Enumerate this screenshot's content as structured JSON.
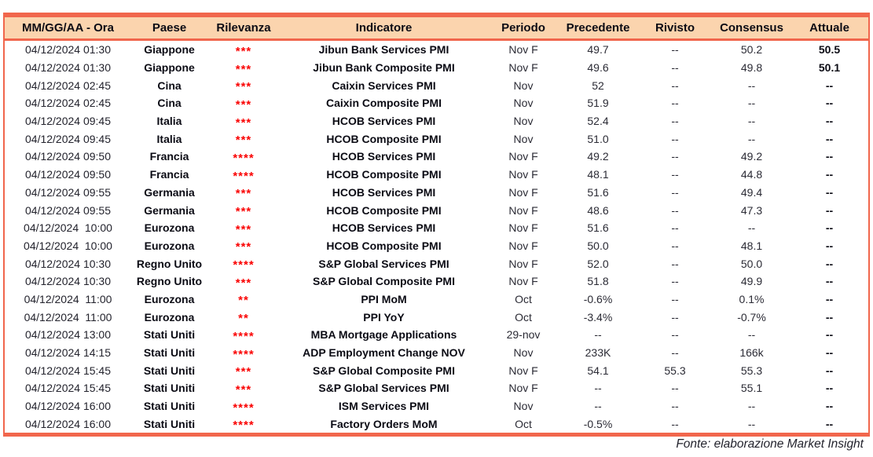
{
  "table": {
    "columns": [
      {
        "key": "datetime",
        "label": "MM/GG/AA - Ora"
      },
      {
        "key": "country",
        "label": "Paese"
      },
      {
        "key": "relevance",
        "label": "Rilevanza"
      },
      {
        "key": "indicator",
        "label": "Indicatore"
      },
      {
        "key": "period",
        "label": "Periodo"
      },
      {
        "key": "previous",
        "label": "Precedente"
      },
      {
        "key": "revised",
        "label": "Rivisto"
      },
      {
        "key": "consensus",
        "label": "Consensus"
      },
      {
        "key": "actual",
        "label": "Attuale"
      }
    ],
    "rows": [
      {
        "datetime": "04/12/2024 01:30",
        "country": "Giappone",
        "relevance": "***",
        "indicator": "Jibun Bank Services PMI",
        "period": "Nov F",
        "previous": "49.7",
        "revised": "--",
        "consensus": "50.2",
        "actual": "50.5"
      },
      {
        "datetime": "04/12/2024 01:30",
        "country": "Giappone",
        "relevance": "***",
        "indicator": "Jibun Bank Composite PMI",
        "period": "Nov F",
        "previous": "49.6",
        "revised": "--",
        "consensus": "49.8",
        "actual": "50.1"
      },
      {
        "datetime": "04/12/2024 02:45",
        "country": "Cina",
        "relevance": "***",
        "indicator": "Caixin Services PMI",
        "period": "Nov",
        "previous": "52",
        "revised": "--",
        "consensus": "--",
        "actual": "--"
      },
      {
        "datetime": "04/12/2024 02:45",
        "country": "Cina",
        "relevance": "***",
        "indicator": "Caixin Composite PMI",
        "period": "Nov",
        "previous": "51.9",
        "revised": "--",
        "consensus": "--",
        "actual": "--"
      },
      {
        "datetime": "04/12/2024 09:45",
        "country": "Italia",
        "relevance": "***",
        "indicator": "HCOB Services PMI",
        "period": "Nov",
        "previous": "52.4",
        "revised": "--",
        "consensus": "--",
        "actual": "--"
      },
      {
        "datetime": "04/12/2024 09:45",
        "country": "Italia",
        "relevance": "***",
        "indicator": "HCOB Composite PMI",
        "period": "Nov",
        "previous": "51.0",
        "revised": "--",
        "consensus": "--",
        "actual": "--"
      },
      {
        "datetime": "04/12/2024 09:50",
        "country": "Francia",
        "relevance": "****",
        "indicator": "HCOB Services PMI",
        "period": "Nov F",
        "previous": "49.2",
        "revised": "--",
        "consensus": "49.2",
        "actual": "--"
      },
      {
        "datetime": "04/12/2024 09:50",
        "country": "Francia",
        "relevance": "****",
        "indicator": "HCOB Composite PMI",
        "period": "Nov F",
        "previous": "48.1",
        "revised": "--",
        "consensus": "44.8",
        "actual": "--"
      },
      {
        "datetime": "04/12/2024 09:55",
        "country": "Germania",
        "relevance": "***",
        "indicator": "HCOB Services PMI",
        "period": "Nov F",
        "previous": "51.6",
        "revised": "--",
        "consensus": "49.4",
        "actual": "--"
      },
      {
        "datetime": "04/12/2024 09:55",
        "country": "Germania",
        "relevance": "***",
        "indicator": "HCOB Composite PMI",
        "period": "Nov F",
        "previous": "48.6",
        "revised": "--",
        "consensus": "47.3",
        "actual": "--"
      },
      {
        "datetime": "04/12/2024  10:00",
        "country": "Eurozona",
        "relevance": "***",
        "indicator": "HCOB Services PMI",
        "period": "Nov F",
        "previous": "51.6",
        "revised": "--",
        "consensus": "--",
        "actual": "--"
      },
      {
        "datetime": "04/12/2024  10:00",
        "country": "Eurozona",
        "relevance": "***",
        "indicator": "HCOB Composite PMI",
        "period": "Nov F",
        "previous": "50.0",
        "revised": "--",
        "consensus": "48.1",
        "actual": "--"
      },
      {
        "datetime": "04/12/2024 10:30",
        "country": "Regno Unito",
        "relevance": "****",
        "indicator": "S&P Global Services PMI",
        "period": "Nov F",
        "previous": "52.0",
        "revised": "--",
        "consensus": "50.0",
        "actual": "--"
      },
      {
        "datetime": "04/12/2024 10:30",
        "country": "Regno Unito",
        "relevance": "***",
        "indicator": "S&P Global Composite PMI",
        "period": "Nov F",
        "previous": "51.8",
        "revised": "--",
        "consensus": "49.9",
        "actual": "--"
      },
      {
        "datetime": "04/12/2024  11:00",
        "country": "Eurozona",
        "relevance": "**",
        "indicator": "PPI MoM",
        "period": "Oct",
        "previous": "-0.6%",
        "revised": "--",
        "consensus": "0.1%",
        "actual": "--"
      },
      {
        "datetime": "04/12/2024  11:00",
        "country": "Eurozona",
        "relevance": "**",
        "indicator": "PPI YoY",
        "period": "Oct",
        "previous": "-3.4%",
        "revised": "--",
        "consensus": "-0.7%",
        "actual": "--"
      },
      {
        "datetime": "04/12/2024 13:00",
        "country": "Stati Uniti",
        "relevance": "****",
        "indicator": "MBA Mortgage Applications",
        "period": "29-nov",
        "previous": "--",
        "revised": "--",
        "consensus": "--",
        "actual": "--"
      },
      {
        "datetime": "04/12/2024 14:15",
        "country": "Stati Uniti",
        "relevance": "****",
        "indicator": "ADP Employment Change NOV",
        "period": "Nov",
        "previous": "233K",
        "revised": "--",
        "consensus": "166k",
        "actual": "--"
      },
      {
        "datetime": "04/12/2024 15:45",
        "country": "Stati Uniti",
        "relevance": "***",
        "indicator": "S&P Global Composite PMI",
        "period": "Nov F",
        "previous": "54.1",
        "revised": "55.3",
        "consensus": "55.3",
        "actual": "--"
      },
      {
        "datetime": "04/12/2024 15:45",
        "country": "Stati Uniti",
        "relevance": "***",
        "indicator": "S&P Global Services PMI",
        "period": "Nov F",
        "previous": "--",
        "revised": "--",
        "consensus": "55.1",
        "actual": "--"
      },
      {
        "datetime": "04/12/2024 16:00",
        "country": "Stati Uniti",
        "relevance": "****",
        "indicator": "ISM Services PMI",
        "period": "Nov",
        "previous": "--",
        "revised": "--",
        "consensus": "--",
        "actual": "--"
      },
      {
        "datetime": "04/12/2024 16:00",
        "country": "Stati Uniti",
        "relevance": "****",
        "indicator": "Factory Orders MoM",
        "period": "Oct",
        "previous": "-0.5%",
        "revised": "--",
        "consensus": "--",
        "actual": "--"
      }
    ]
  },
  "footer": {
    "source_label": "Fonte: elaborazione Market Insight"
  },
  "colors": {
    "table_border": "#f1664c",
    "header_fill": "#fbd4ae",
    "header_text": "#0b0b14",
    "body_text": "#2b2b35",
    "bold_text": "#0b0b14",
    "relevance_stars": "#fa0000"
  }
}
